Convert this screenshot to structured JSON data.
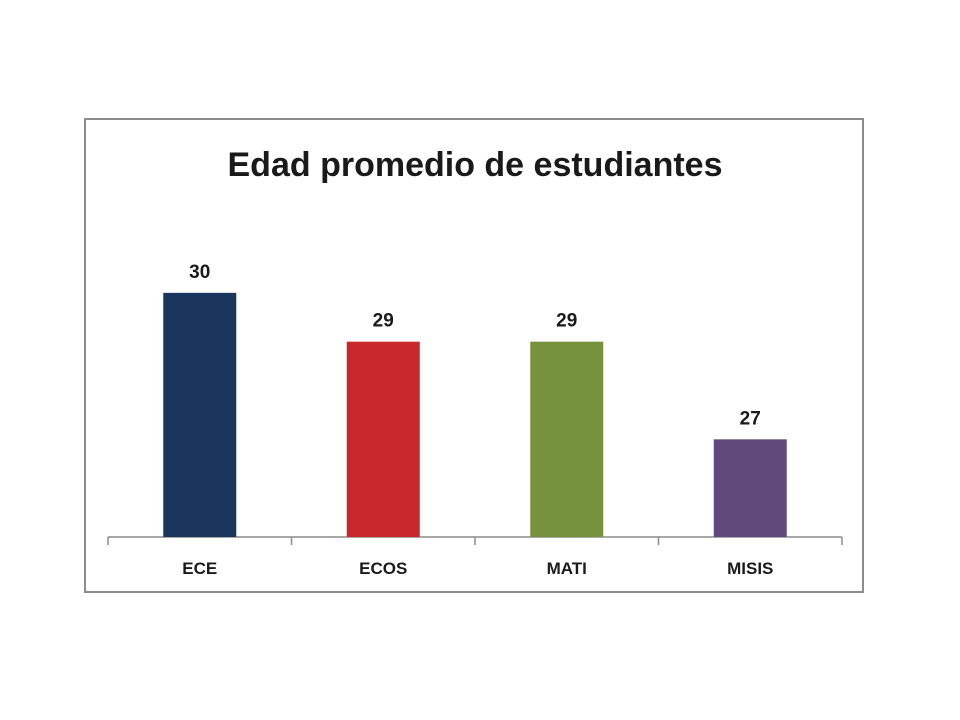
{
  "chart_data": {
    "type": "bar",
    "title": "Edad promedio de estudiantes",
    "categories": [
      "ECE",
      "ECOS",
      "MATI",
      "MISIS"
    ],
    "values": [
      30,
      29,
      29,
      27
    ],
    "colors": [
      "#1b365c",
      "#c8292d",
      "#76923c",
      "#604a7b"
    ],
    "data_labels": [
      "30",
      "29",
      "29",
      "27"
    ],
    "ylim": [
      25,
      31
    ],
    "grid": false,
    "legend": "none",
    "axis_color": "#8c8c8c"
  }
}
